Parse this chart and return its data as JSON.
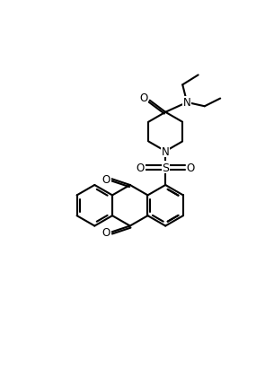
{
  "bg": "#ffffff",
  "lc": "#000000",
  "lw": 1.5,
  "fs": 8.5,
  "fig_w": 2.84,
  "fig_h": 4.12,
  "dpi": 100
}
